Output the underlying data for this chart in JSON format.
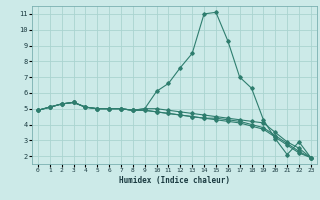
{
  "xlabel": "Humidex (Indice chaleur)",
  "ylabel": "",
  "background_color": "#cceae8",
  "grid_color": "#aad4d0",
  "line_color": "#2e7d6e",
  "xlim": [
    -0.5,
    23.5
  ],
  "ylim": [
    1.5,
    11.5
  ],
  "xticks": [
    0,
    1,
    2,
    3,
    4,
    5,
    6,
    7,
    8,
    9,
    10,
    11,
    12,
    13,
    14,
    15,
    16,
    17,
    18,
    19,
    20,
    21,
    22,
    23
  ],
  "yticks": [
    2,
    3,
    4,
    5,
    6,
    7,
    8,
    9,
    10,
    11
  ],
  "series": [
    [
      4.9,
      5.1,
      5.3,
      5.4,
      5.1,
      5.0,
      5.0,
      5.0,
      4.9,
      5.0,
      6.1,
      6.6,
      7.6,
      8.5,
      11.0,
      11.1,
      9.3,
      7.0,
      6.3,
      4.3,
      3.1,
      2.1,
      2.9,
      1.9
    ],
    [
      4.9,
      5.1,
      5.3,
      5.4,
      5.1,
      5.0,
      5.0,
      5.0,
      4.9,
      5.0,
      5.0,
      4.9,
      4.8,
      4.7,
      4.6,
      4.5,
      4.4,
      4.3,
      4.2,
      4.1,
      3.5,
      2.9,
      2.5,
      1.9
    ],
    [
      4.9,
      5.1,
      5.3,
      5.4,
      5.1,
      5.0,
      5.0,
      5.0,
      4.9,
      4.9,
      4.8,
      4.7,
      4.6,
      4.5,
      4.4,
      4.3,
      4.2,
      4.1,
      3.9,
      3.7,
      3.2,
      2.7,
      2.2,
      1.9
    ],
    [
      4.9,
      5.1,
      5.3,
      5.4,
      5.1,
      5.0,
      5.0,
      5.0,
      4.9,
      4.9,
      4.8,
      4.7,
      4.6,
      4.5,
      4.4,
      4.4,
      4.3,
      4.2,
      4.0,
      3.8,
      3.3,
      2.8,
      2.3,
      1.9
    ]
  ]
}
